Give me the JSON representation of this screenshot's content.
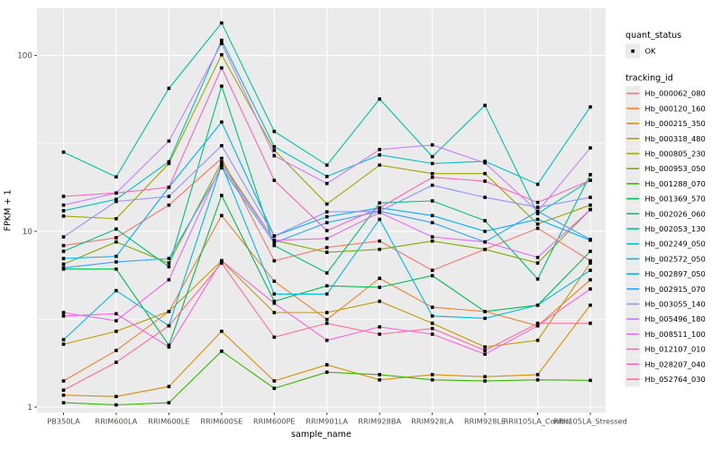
{
  "chart_data": {
    "type": "line",
    "title": "",
    "xlabel": "sample_name",
    "ylabel": "FPKM + 1",
    "yscale": "log10",
    "ylim": [
      1,
      160
    ],
    "y_major_ticks": [
      1,
      10,
      100
    ],
    "y_minor_ticks": [
      3.1623,
      31.623
    ],
    "grid": "on",
    "point_shape": "black-square",
    "categories": [
      "PB350LA",
      "RRIM600LA",
      "RRIM600LE",
      "RRIM600SE",
      "RRIM600PE",
      "RRIM901LA",
      "RRIM928BA",
      "RRIM928LA",
      "RRIM928LE",
      "RRII105LA_Control",
      "RRII105LA_Stressed"
    ],
    "series": [
      {
        "name": "Hb_000062_080",
        "color": "#F8766D",
        "values": [
          8.3,
          9.2,
          14.1,
          26.0,
          6.8,
          8.1,
          8.8,
          6.0,
          7.9,
          10.4,
          6.8
        ]
      },
      {
        "name": "Hb_000120_160",
        "color": "#EA8331",
        "values": [
          1.41,
          2.1,
          3.5,
          12.3,
          5.2,
          3.15,
          5.4,
          3.7,
          3.5,
          2.9,
          5.3
        ]
      },
      {
        "name": "Hb_000215_350",
        "color": "#D89000",
        "values": [
          1.17,
          1.15,
          1.31,
          2.7,
          1.41,
          1.74,
          1.43,
          1.53,
          1.49,
          1.53,
          3.8
        ]
      },
      {
        "name": "Hb_000318_480",
        "color": "#C09B00",
        "values": [
          2.28,
          2.7,
          3.5,
          6.8,
          3.45,
          3.45,
          4.0,
          3.0,
          2.2,
          2.4,
          6.6
        ]
      },
      {
        "name": "Hb_000805_230",
        "color": "#A3A500",
        "values": [
          12.2,
          11.8,
          24.3,
          101,
          28.9,
          14.3,
          23.8,
          21.3,
          21.3,
          11.0,
          14.1
        ]
      },
      {
        "name": "Hb_000953_050",
        "color": "#7CAE00",
        "values": [
          6.5,
          8.7,
          6.6,
          24.8,
          8.9,
          7.6,
          7.9,
          8.8,
          7.9,
          6.6,
          13.3
        ]
      },
      {
        "name": "Hb_001288_070",
        "color": "#39B600",
        "values": [
          1.06,
          1.03,
          1.06,
          2.08,
          1.28,
          1.58,
          1.53,
          1.43,
          1.41,
          1.43,
          1.42
        ]
      },
      {
        "name": "Hb_001369_570",
        "color": "#00BB4E",
        "values": [
          6.1,
          6.1,
          2.25,
          16.0,
          4.0,
          4.9,
          4.8,
          5.6,
          3.5,
          3.8,
          7.7
        ]
      },
      {
        "name": "Hb_002026_060",
        "color": "#00BF7D",
        "values": [
          7.7,
          10.3,
          6.3,
          67.0,
          8.3,
          5.8,
          14.5,
          14.9,
          11.5,
          5.35,
          21.0
        ]
      },
      {
        "name": "Hb_002053_130",
        "color": "#00C1A3",
        "values": [
          28.2,
          20.4,
          65.0,
          153,
          37.0,
          23.8,
          56.6,
          26.6,
          52.0,
          12.6,
          19.5
        ]
      },
      {
        "name": "Hb_002249_050",
        "color": "#00BFC4",
        "values": [
          13.1,
          15.2,
          24.9,
          122,
          30.3,
          20.5,
          27.2,
          24.3,
          25.0,
          18.5,
          51.0
        ]
      },
      {
        "name": "Hb_002572_050",
        "color": "#00BAE0",
        "values": [
          2.42,
          4.6,
          2.9,
          23.9,
          4.4,
          4.4,
          11.7,
          3.3,
          3.2,
          3.8,
          6.0
        ]
      },
      {
        "name": "Hb_002897_050",
        "color": "#00B0F6",
        "values": [
          7.0,
          7.2,
          17.8,
          41.8,
          9.4,
          12.1,
          13.6,
          12.3,
          10.0,
          11.7,
          8.9
        ]
      },
      {
        "name": "Hb_002915_070",
        "color": "#35A2FF",
        "values": [
          6.2,
          6.7,
          7.0,
          23.0,
          8.6,
          11.2,
          13.0,
          11.2,
          8.7,
          13.0,
          9.0
        ]
      },
      {
        "name": "Hb_003055_140",
        "color": "#9590FF",
        "values": [
          9.3,
          14.8,
          15.8,
          30.7,
          9.4,
          12.9,
          13.0,
          18.3,
          15.6,
          13.7,
          15.6
        ]
      },
      {
        "name": "Hb_005496_180",
        "color": "#C77CFF",
        "values": [
          14.1,
          16.5,
          32.6,
          117,
          26.9,
          18.7,
          29.2,
          31.0,
          24.5,
          13.0,
          29.8
        ]
      },
      {
        "name": "Hb_008511_100",
        "color": "#E76BF3",
        "values": [
          3.45,
          3.1,
          5.3,
          23.9,
          8.9,
          9.1,
          12.8,
          9.3,
          8.7,
          7.1,
          13.3
        ]
      },
      {
        "name": "Hb_012107_010",
        "color": "#FA62DB",
        "values": [
          3.3,
          3.4,
          2.2,
          6.8,
          3.9,
          2.4,
          2.86,
          2.6,
          2.0,
          2.9,
          4.7
        ]
      },
      {
        "name": "Hb_028207_040",
        "color": "#FF62BC",
        "values": [
          15.8,
          16.5,
          17.8,
          85.0,
          19.5,
          10.1,
          13.6,
          20.3,
          19.3,
          14.6,
          19.5
        ]
      },
      {
        "name": "Hb_052764_030",
        "color": "#FF6A98",
        "values": [
          1.25,
          1.8,
          2.9,
          6.6,
          2.5,
          3.0,
          2.6,
          2.8,
          2.1,
          3.0,
          3.0
        ]
      }
    ],
    "legend": {
      "position": "right",
      "quant_status_title": "quant_status",
      "quant_status_items": [
        {
          "label": "OK",
          "shape": "black-square-point"
        }
      ],
      "tracking_id_title": "tracking_id"
    },
    "y_tick_labels": [
      "1",
      "10",
      "100"
    ]
  },
  "theme": {
    "panel_bg": "#EBEBEB",
    "grid_color": "#FFFFFF",
    "axis_text_color": "#4D4D4D",
    "title_text_color": "#000000",
    "legend_key_bg": "#EBEBEB",
    "point_color": "#000000"
  }
}
